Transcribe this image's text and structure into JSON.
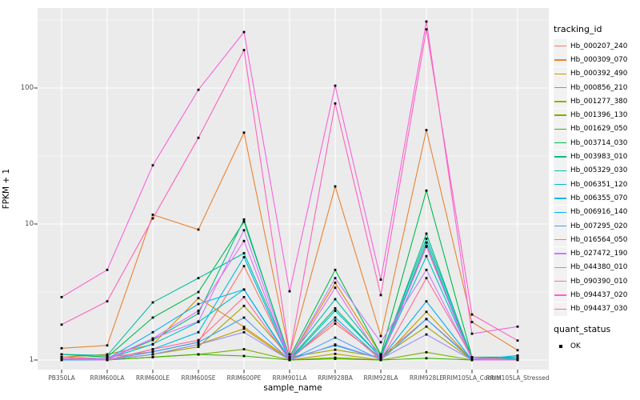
{
  "figure": {
    "background": "#FFFFFF",
    "panel_bg": "#EBEBEB",
    "grid_color": "#FFFFFF",
    "tick_color": "#333333",
    "tick_label_color": "#4D4D4D",
    "point_color": "#000000"
  },
  "chart_data": {
    "type": "line",
    "title": "",
    "xlabel": "sample_name",
    "ylabel": "FPKM + 1",
    "y_scale": "log10",
    "ylim": [
      0.85,
      390
    ],
    "y_ticks": [
      1,
      10,
      100
    ],
    "y_minor_ticks": [
      3.162,
      31.62,
      316.2
    ],
    "grid": "on",
    "legend_position": "right",
    "legend_title": "tracking_id",
    "legend2_title": "quant_status",
    "legend2_items": [
      {
        "label": "OK",
        "marker": "black-square"
      }
    ],
    "categories": [
      "PB350LA",
      "RRIM600LA",
      "RRIM600LE",
      "RRIM600SE",
      "RRIM600PE",
      "RRIM901LA",
      "RRIM928BA",
      "RRIM928LA",
      "RRIM928LE",
      "RRIM105LA_Control",
      "RRIM105LA_Stressed"
    ],
    "series": [
      {
        "name": "Hb_000207_240",
        "color": "#F8766D",
        "values": [
          1.1,
          1.05,
          1.15,
          1.35,
          4.9,
          1.02,
          1.85,
          1.05,
          2.0,
          1.02,
          1.0
        ]
      },
      {
        "name": "Hb_000309_070",
        "color": "#EA8331",
        "values": [
          1.22,
          1.28,
          11.7,
          9.1,
          47.0,
          1.1,
          18.9,
          1.5,
          49.0,
          1.9,
          1.18
        ]
      },
      {
        "name": "Hb_000392_490",
        "color": "#D89000",
        "values": [
          1.05,
          1.1,
          1.3,
          2.85,
          1.75,
          1.02,
          3.7,
          1.1,
          6.9,
          1.05,
          1.0
        ]
      },
      {
        "name": "Hb_000856_210",
        "color": "#C09B00",
        "values": [
          1.0,
          1.0,
          1.1,
          1.3,
          1.7,
          1.0,
          1.11,
          1.0,
          2.26,
          1.0,
          1.0
        ]
      },
      {
        "name": "Hb_001277_380",
        "color": "#A3A500",
        "values": [
          1.05,
          1.0,
          1.1,
          1.25,
          2.5,
          1.05,
          1.19,
          1.05,
          1.76,
          1.0,
          1.05
        ]
      },
      {
        "name": "Hb_001396_130",
        "color": "#7CAE00",
        "values": [
          1.0,
          1.0,
          1.05,
          1.1,
          1.2,
          1.0,
          1.04,
          1.0,
          1.14,
          1.0,
          1.0
        ]
      },
      {
        "name": "Hb_001629_050",
        "color": "#39B600",
        "values": [
          1.02,
          1.0,
          1.05,
          1.1,
          1.07,
          1.0,
          1.02,
          1.0,
          1.03,
          1.0,
          1.0
        ]
      },
      {
        "name": "Hb_003714_030",
        "color": "#00BB4E",
        "values": [
          1.1,
          1.05,
          2.05,
          3.16,
          10.4,
          1.05,
          4.6,
          1.1,
          17.6,
          1.05,
          1.05
        ]
      },
      {
        "name": "Hb_003983_010",
        "color": "#00BF7D",
        "values": [
          1.05,
          1.02,
          1.4,
          2.2,
          10.8,
          1.02,
          2.4,
          1.05,
          8.5,
          1.02,
          1.0
        ]
      },
      {
        "name": "Hb_005329_030",
        "color": "#00C1A3",
        "values": [
          1.1,
          1.08,
          2.65,
          4.0,
          6.1,
          1.05,
          2.8,
          1.08,
          7.8,
          1.05,
          1.02
        ]
      },
      {
        "name": "Hb_006351_120",
        "color": "#00BFC4",
        "values": [
          1.05,
          1.02,
          1.31,
          1.9,
          3.3,
          1.0,
          2.3,
          1.05,
          5.8,
          1.02,
          1.05
        ]
      },
      {
        "name": "Hb_006355_070",
        "color": "#00BAE0",
        "values": [
          1.02,
          1.0,
          1.2,
          1.6,
          5.7,
          1.0,
          2.05,
          1.02,
          7.3,
          1.0,
          1.08
        ]
      },
      {
        "name": "Hb_006916_140",
        "color": "#00B0F6",
        "values": [
          1.05,
          1.02,
          1.6,
          2.58,
          3.3,
          1.02,
          1.28,
          1.02,
          2.7,
          1.0,
          1.02
        ]
      },
      {
        "name": "Hb_007295_020",
        "color": "#35A2FF",
        "values": [
          1.0,
          1.0,
          1.15,
          1.35,
          2.05,
          1.0,
          1.46,
          1.0,
          2.0,
          1.0,
          1.0
        ]
      },
      {
        "name": "Hb_016564_050",
        "color": "#9590FF",
        "values": [
          1.02,
          1.0,
          1.1,
          1.3,
          1.6,
          1.0,
          1.3,
          1.02,
          1.54,
          1.0,
          1.0
        ]
      },
      {
        "name": "Hb_027472_190",
        "color": "#C77CFF",
        "values": [
          1.05,
          1.02,
          1.44,
          1.92,
          9.0,
          1.02,
          4.0,
          1.35,
          4.6,
          1.02,
          1.0
        ]
      },
      {
        "name": "Hb_044380_010",
        "color": "#E76BF3",
        "values": [
          1.02,
          1.0,
          1.44,
          2.3,
          7.5,
          1.0,
          3.4,
          1.02,
          6.8,
          1.0,
          1.0
        ]
      },
      {
        "name": "Hb_090390_010",
        "color": "#FA62DB",
        "values": [
          2.9,
          4.6,
          27.0,
          97.0,
          258,
          3.2,
          104,
          3.9,
          308,
          1.56,
          1.76
        ]
      },
      {
        "name": "Hb_094437_020",
        "color": "#FF62BC",
        "values": [
          1.82,
          2.7,
          11.0,
          43.0,
          190,
          1.1,
          77.0,
          3.0,
          270,
          2.16,
          1.39
        ]
      },
      {
        "name": "Hb_094437_030",
        "color": "#FF6A98",
        "values": [
          1.05,
          1.0,
          1.2,
          1.4,
          2.9,
          1.0,
          1.95,
          1.0,
          4.0,
          1.05,
          1.0
        ]
      }
    ]
  }
}
